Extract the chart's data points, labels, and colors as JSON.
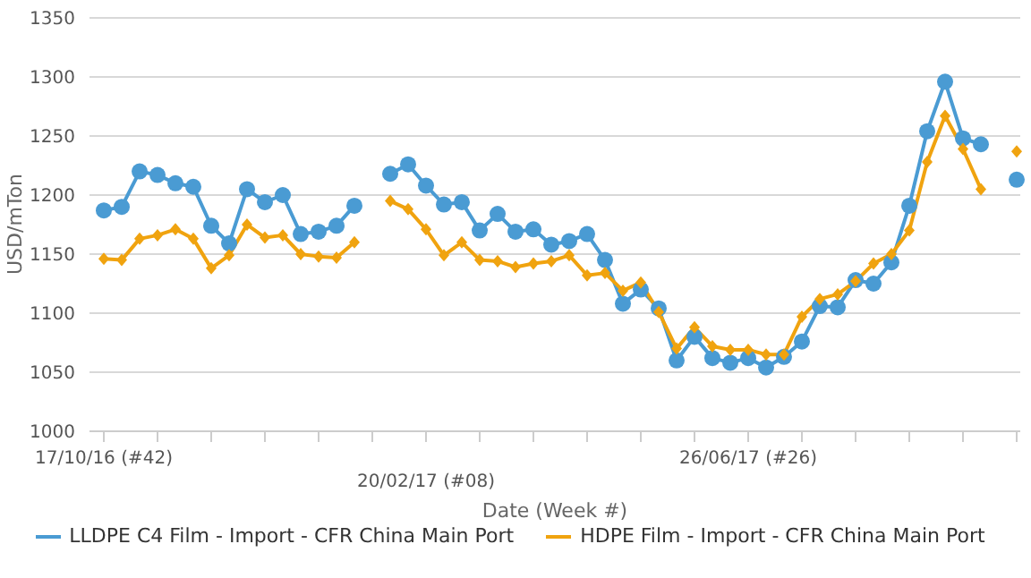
{
  "chart_data": {
    "type": "line",
    "xlabel": "Date (Week #)",
    "ylabel": "USD/mTon",
    "categories": [
      "17/10/16 (#42)",
      null,
      null,
      null,
      null,
      null,
      null,
      null,
      null,
      null,
      null,
      null,
      null,
      null,
      null,
      null,
      null,
      null,
      "20/02/17 (#08)",
      null,
      null,
      null,
      null,
      null,
      null,
      null,
      null,
      null,
      null,
      null,
      null,
      null,
      null,
      null,
      null,
      null,
      "26/06/17 (#26)",
      null,
      null,
      null,
      null,
      null,
      null,
      null,
      null,
      null,
      null,
      null,
      null,
      null,
      null,
      null
    ],
    "series": [
      {
        "name": "LLDPE C4 Film - Import - CFR China Main Port",
        "color": "#4a9bd3",
        "marker": "circle",
        "values": [
          1187,
          1190,
          1220,
          1217,
          1210,
          1207,
          1174,
          1159,
          1205,
          1194,
          1200,
          1167,
          1169,
          1174,
          1191,
          null,
          1218,
          1226,
          1208,
          1192,
          1194,
          1170,
          1184,
          1169,
          1171,
          1158,
          1161,
          1167,
          1145,
          1108,
          1120,
          1104,
          1060,
          1080,
          1062,
          1058,
          1062,
          1054,
          1063,
          1076,
          1106,
          1105,
          1128,
          1125,
          1143,
          1191,
          1254,
          1296,
          1248,
          1243,
          null,
          1213
        ]
      },
      {
        "name": "HDPE Film - Import - CFR China Main Port",
        "color": "#f0a30f",
        "marker": "diamond",
        "values": [
          1146,
          1145,
          1163,
          1166,
          1171,
          1163,
          1138,
          1149,
          1175,
          1164,
          1166,
          1150,
          1148,
          1147,
          1160,
          null,
          1195,
          1188,
          1171,
          1149,
          1160,
          1145,
          1144,
          1139,
          1142,
          1144,
          1149,
          1132,
          1134,
          1119,
          1126,
          1101,
          1070,
          1088,
          1072,
          1069,
          1069,
          1065,
          1065,
          1097,
          1112,
          1116,
          1127,
          1142,
          1150,
          1170,
          1228,
          1267,
          1239,
          1205,
          null,
          1237
        ]
      }
    ],
    "ylim": [
      1000,
      1350
    ],
    "yticks": [
      1000,
      1050,
      1100,
      1150,
      1200,
      1250,
      1300,
      1350
    ],
    "grid": "y",
    "legend": "bottom",
    "line_style": "solid"
  }
}
